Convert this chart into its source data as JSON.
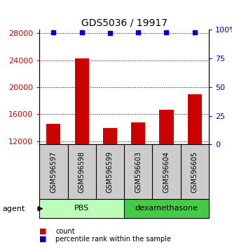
{
  "title": "GDS5036 / 19917",
  "samples": [
    "GSM596597",
    "GSM596598",
    "GSM596599",
    "GSM596603",
    "GSM596604",
    "GSM596605"
  ],
  "counts": [
    14600,
    24300,
    13900,
    14800,
    16600,
    18900
  ],
  "percentile_ranks": [
    98,
    98,
    97,
    98,
    98,
    98
  ],
  "ylim_left": [
    11500,
    28500
  ],
  "ylim_right": [
    0,
    100
  ],
  "yticks_left": [
    12000,
    16000,
    20000,
    24000,
    28000
  ],
  "yticks_right": [
    0,
    25,
    50,
    75,
    100
  ],
  "bar_color": "#cc0000",
  "dot_color": "#0000cc",
  "groups": [
    {
      "label": "PBS",
      "start": 0,
      "end": 2,
      "color": "#bbffbb"
    },
    {
      "label": "dexamethasone",
      "start": 3,
      "end": 5,
      "color": "#44cc44"
    }
  ],
  "agent_label": "agent",
  "legend_count_label": "count",
  "legend_pct_label": "percentile rank within the sample",
  "legend_count_color": "#cc0000",
  "legend_pct_color": "#0000cc",
  "background_color": "#ffffff",
  "sample_box_color": "#cccccc",
  "bar_width": 0.5,
  "title_fontsize": 10,
  "tick_fontsize": 8,
  "sample_fontsize": 7,
  "group_fontsize": 8,
  "legend_fontsize": 7
}
